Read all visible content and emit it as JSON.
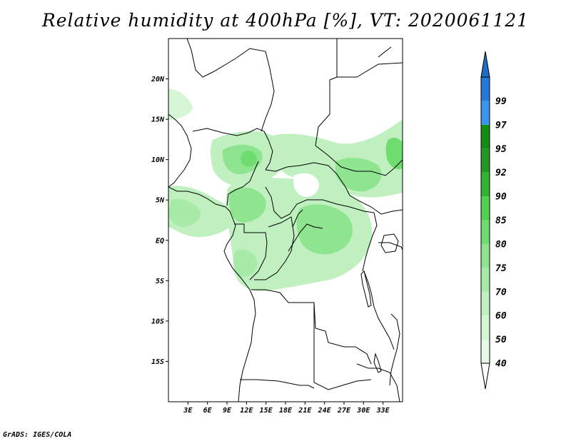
{
  "title": "Relative humidity at 400hPa [%], VT: 2020061121",
  "credit": "GrADS: IGES/COLA",
  "map": {
    "lon_range": [
      0,
      36
    ],
    "lat_range": [
      -20,
      25
    ],
    "lat_ticks": [
      {
        "value": 20,
        "label": "20N"
      },
      {
        "value": 15,
        "label": "15N"
      },
      {
        "value": 10,
        "label": "10N"
      },
      {
        "value": 5,
        "label": "5N"
      },
      {
        "value": 0,
        "label": "EQ"
      },
      {
        "value": -5,
        "label": "5S"
      },
      {
        "value": -10,
        "label": "10S"
      },
      {
        "value": -15,
        "label": "15S"
      }
    ],
    "lon_ticks": [
      {
        "value": 3,
        "label": "3E"
      },
      {
        "value": 6,
        "label": "6E"
      },
      {
        "value": 9,
        "label": "9E"
      },
      {
        "value": 12,
        "label": "12E"
      },
      {
        "value": 15,
        "label": "15E"
      },
      {
        "value": 18,
        "label": "18E"
      },
      {
        "value": 21,
        "label": "21E"
      },
      {
        "value": 24,
        "label": "24E"
      },
      {
        "value": 27,
        "label": "27E"
      },
      {
        "value": 30,
        "label": "30E"
      },
      {
        "value": 33,
        "label": "33E"
      }
    ]
  },
  "colorbar": {
    "levels": [
      {
        "label": "40",
        "color": "#e6fae6"
      },
      {
        "label": "50",
        "color": "#d4f6d4"
      },
      {
        "label": "60",
        "color": "#c0f0c0"
      },
      {
        "label": "70",
        "color": "#a8eaa8"
      },
      {
        "label": "75",
        "color": "#8fe48f"
      },
      {
        "label": "80",
        "color": "#6edc6e"
      },
      {
        "label": "85",
        "color": "#4fd24f"
      },
      {
        "label": "90",
        "color": "#32b432"
      },
      {
        "label": "92",
        "color": "#239623"
      },
      {
        "label": "95",
        "color": "#148c14"
      },
      {
        "label": "97",
        "color": "#3c96f0"
      },
      {
        "label": "99",
        "color": "#2878dc"
      }
    ],
    "under_color": "#ffffff",
    "over_color": "#1e6ec8"
  }
}
